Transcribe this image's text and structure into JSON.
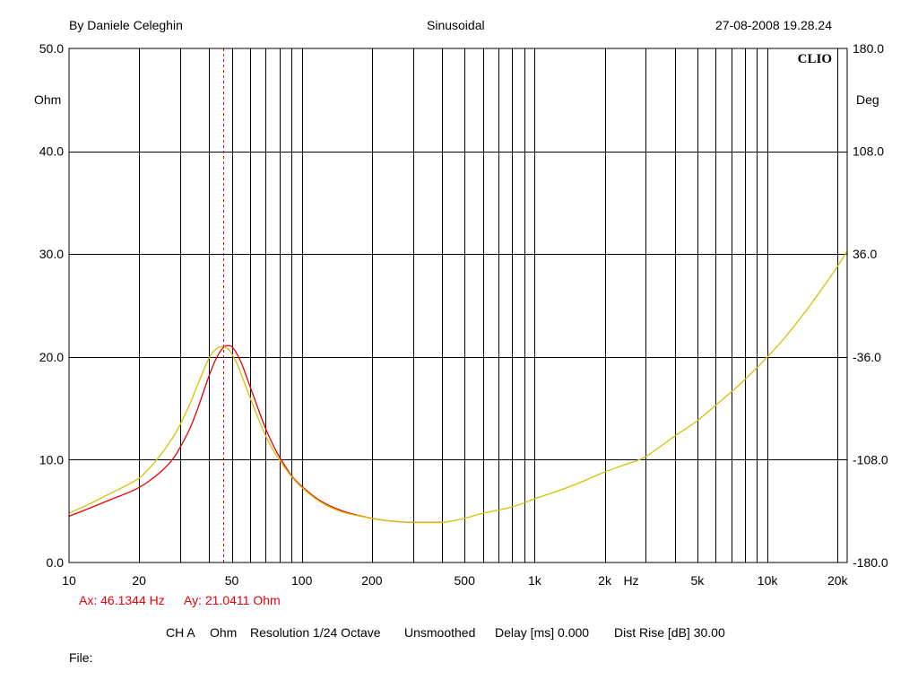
{
  "header": {
    "author": "By Daniele Celeghin",
    "mode": "Sinusoidal",
    "datetime": "27-08-2008 19.28.24"
  },
  "brand": "CLIO",
  "colors": {
    "red": "#e8000b",
    "yellow": "#d8c000",
    "cursor": "#e8000b",
    "grid": "#000000"
  },
  "cursor": {
    "ax_label": "Ax: 46.1344 Hz",
    "ay_label": "Ay: 21.0411 Ohm"
  },
  "footer": {
    "channel": "CH A",
    "unit": "Ohm",
    "resolution": "Resolution 1/24 Octave",
    "smoothing": "Unsmoothed",
    "delay": "Delay [ms] 0.000",
    "dist_rise": "Dist Rise [dB] 30.00",
    "file": "File:"
  },
  "chart_data": {
    "type": "line",
    "x_scale": "log",
    "xlim": [
      10,
      22000
    ],
    "ylim": [
      0,
      50
    ],
    "ylim_right": [
      -180,
      180
    ],
    "xlabel": "Hz",
    "ylabel": "Ohm",
    "ylabel_right": "Deg",
    "grid": true,
    "x_ticks": [
      {
        "v": 10,
        "label": "10"
      },
      {
        "v": 20,
        "label": "20"
      },
      {
        "v": 50,
        "label": "50"
      },
      {
        "v": 100,
        "label": "100"
      },
      {
        "v": 200,
        "label": "200"
      },
      {
        "v": 500,
        "label": "500"
      },
      {
        "v": 1000,
        "label": "1k"
      },
      {
        "v": 2000,
        "label": "2k"
      },
      {
        "v": 5000,
        "label": "5k"
      },
      {
        "v": 10000,
        "label": "10k"
      },
      {
        "v": 20000,
        "label": "20k"
      }
    ],
    "y_ticks": [
      {
        "v": 0,
        "label": "0.0"
      },
      {
        "v": 10,
        "label": "10.0"
      },
      {
        "v": 20,
        "label": "20.0"
      },
      {
        "v": 30,
        "label": "30.0"
      },
      {
        "v": 40,
        "label": "40.0"
      },
      {
        "v": 50,
        "label": "50.0"
      }
    ],
    "y_ticks_right": [
      {
        "v": -180,
        "label": "-180.0"
      },
      {
        "v": -108,
        "label": "-108.0"
      },
      {
        "v": -36,
        "label": "-36.0"
      },
      {
        "v": 36,
        "label": "36.0"
      },
      {
        "v": 108,
        "label": "108.0"
      },
      {
        "v": 180,
        "label": "180.0"
      }
    ],
    "cursor_x": 46.1344,
    "series": [
      {
        "color": "#e8000b",
        "x": [
          10,
          12,
          15,
          18,
          20,
          22,
          25,
          28,
          30,
          33,
          36,
          40,
          43,
          46,
          48,
          50,
          52,
          55,
          58,
          62,
          66,
          70,
          75,
          80,
          90,
          100,
          120,
          150,
          200,
          250,
          300,
          400
        ],
        "y": [
          4.5,
          5.2,
          6.1,
          6.8,
          7.3,
          7.9,
          8.9,
          10.1,
          11.2,
          13.0,
          15.2,
          18.2,
          19.9,
          20.9,
          21.1,
          21.0,
          20.5,
          19.4,
          18.0,
          16.2,
          14.5,
          13.0,
          11.5,
          10.3,
          8.5,
          7.4,
          6.0,
          5.0,
          4.3,
          4.0,
          3.9,
          3.9
        ]
      },
      {
        "color": "#d8c000",
        "x": [
          10,
          12,
          15,
          18,
          20,
          22,
          25,
          28,
          30,
          33,
          36,
          40,
          43,
          46,
          48,
          50,
          53,
          56,
          60,
          65,
          70,
          75,
          80,
          90,
          100,
          120,
          150,
          200,
          250,
          300,
          400,
          500,
          600,
          800,
          1000,
          1200,
          1500,
          2000,
          2500,
          3000,
          4000,
          5000,
          6000,
          7000,
          8000,
          10000,
          12000,
          15000,
          18000,
          20000,
          22000
        ],
        "y": [
          4.8,
          5.6,
          6.7,
          7.6,
          8.2,
          9.1,
          10.6,
          12.2,
          13.4,
          15.4,
          17.5,
          19.9,
          20.8,
          21.0,
          20.8,
          20.3,
          19.2,
          17.8,
          16.0,
          14.0,
          12.3,
          11.0,
          10.0,
          8.4,
          7.3,
          5.9,
          4.9,
          4.3,
          4.0,
          3.9,
          3.9,
          4.3,
          4.8,
          5.4,
          6.2,
          6.8,
          7.6,
          8.8,
          9.6,
          10.3,
          12.3,
          13.8,
          15.3,
          16.6,
          17.8,
          20.0,
          22.0,
          24.8,
          27.3,
          28.8,
          30.3
        ]
      }
    ]
  }
}
